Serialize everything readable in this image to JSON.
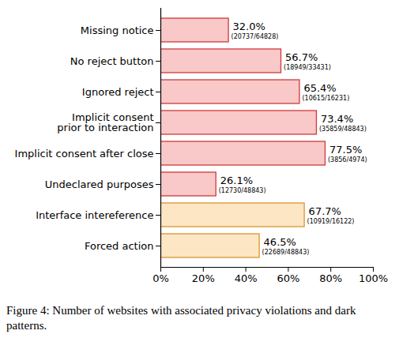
{
  "chart_data": {
    "type": "bar",
    "orientation": "horizontal",
    "caption": "Figure 4: Number of websites with associated privacy violations and dark patterns.",
    "categories": [
      "Missing notice",
      "No reject button",
      "Ignored reject",
      "Implicit consent\nprior to interaction",
      "Implicit consent after close",
      "Undeclared purposes",
      "Interface intereference",
      "Forced action"
    ],
    "values": [
      32.0,
      56.7,
      65.4,
      73.4,
      77.5,
      26.1,
      67.7,
      46.5
    ],
    "value_labels": [
      "32.0%",
      "56.7%",
      "65.4%",
      "73.4%",
      "77.5%",
      "26.1%",
      "67.7%",
      "46.5%"
    ],
    "annotations": [
      "(20737/64828)",
      "(18949/33431)",
      "(10615/16231)",
      "(35859/48843)",
      "(3856/4974)",
      "(12730/48843)",
      "(10919/16122)",
      "(22689/48843)"
    ],
    "colors": [
      "#f9c8c8",
      "#f9c8c8",
      "#f9c8c8",
      "#f9c8c8",
      "#f9c8c8",
      "#f9c8c8",
      "#fde6c4",
      "#fde6c4"
    ],
    "data_labels": true,
    "xlim": [
      0,
      100
    ],
    "xticks": [
      {
        "value": 0,
        "label": "0%"
      },
      {
        "value": 20,
        "label": "20%"
      },
      {
        "value": 40,
        "label": "40%"
      },
      {
        "value": 60,
        "label": "60%"
      },
      {
        "value": 80,
        "label": "80%"
      },
      {
        "value": 100,
        "label": "100%"
      }
    ]
  }
}
